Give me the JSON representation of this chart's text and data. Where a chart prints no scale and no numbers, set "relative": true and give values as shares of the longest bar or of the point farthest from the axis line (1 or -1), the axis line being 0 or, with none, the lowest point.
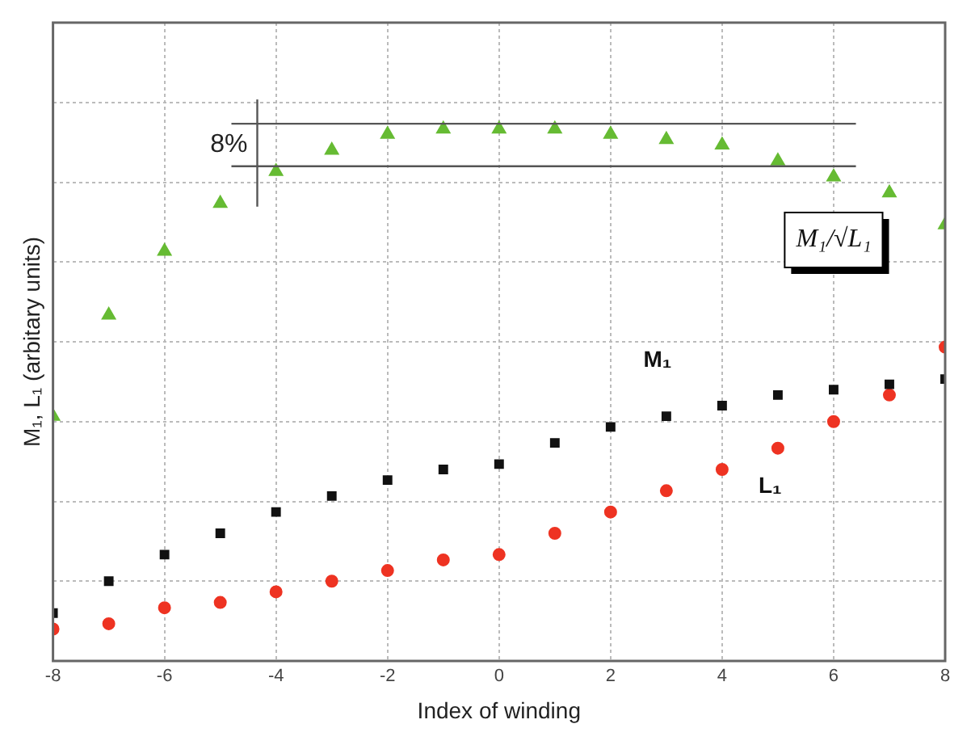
{
  "chart_data": {
    "type": "scatter",
    "xlabel": "Index of winding",
    "ylabel": "M₁, L₁ (arbitary units)",
    "relative": true,
    "x": [
      -8,
      -7,
      -6,
      -5,
      -4,
      -3,
      -2,
      -1,
      0,
      1,
      2,
      3,
      4,
      5,
      6,
      7,
      8
    ],
    "xlim": [
      -8,
      8
    ],
    "xticks": [
      -8,
      -6,
      -4,
      -2,
      0,
      2,
      4,
      6,
      8
    ],
    "grid": true,
    "legend": false,
    "series": [
      {
        "name": "M₁/√L₁",
        "color": "#66bb33",
        "marker": "triangle",
        "values": [
          0.46,
          0.65,
          0.77,
          0.86,
          0.92,
          0.96,
          0.99,
          1,
          1,
          1,
          0.99,
          0.98,
          0.97,
          0.94,
          0.91,
          0.88,
          0.82
        ]
      },
      {
        "name": "M₁",
        "color": "#111111",
        "marker": "square",
        "values": [
          0.09,
          0.15,
          0.2,
          0.24,
          0.28,
          0.31,
          0.34,
          0.36,
          0.37,
          0.41,
          0.44,
          0.46,
          0.48,
          0.5,
          0.51,
          0.52,
          0.53
        ]
      },
      {
        "name": "L₁",
        "color": "#ee3322",
        "marker": "circle",
        "values": [
          0.06,
          0.07,
          0.1,
          0.11,
          0.13,
          0.15,
          0.17,
          0.19,
          0.2,
          0.24,
          0.28,
          0.32,
          0.36,
          0.4,
          0.45,
          0.5,
          0.59
        ]
      }
    ],
    "ref_lines": [
      {
        "axis": "y",
        "value": 1.01
      },
      {
        "axis": "y",
        "value": 0.93
      }
    ],
    "annotations": [
      "8%"
    ]
  }
}
